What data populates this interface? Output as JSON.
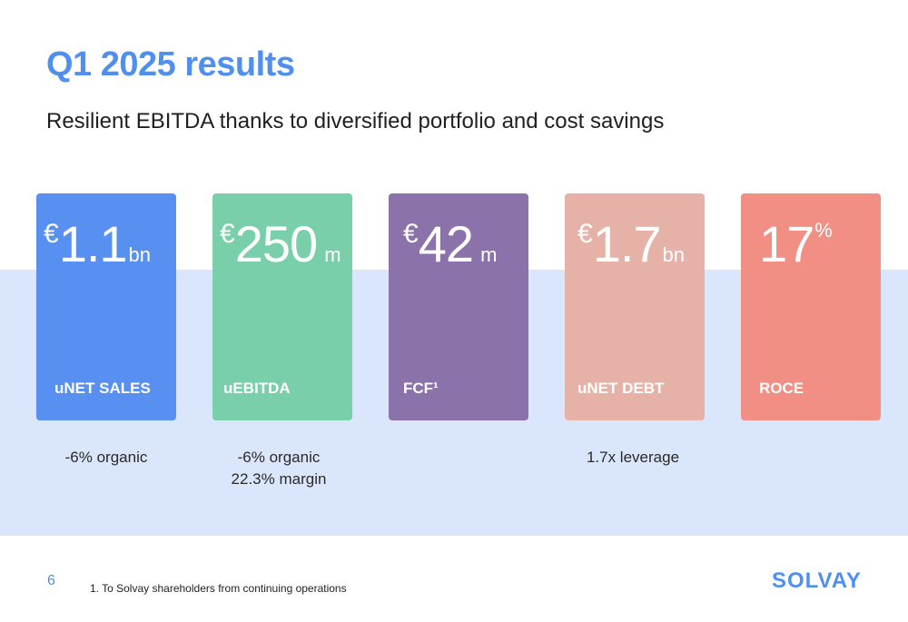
{
  "header": {
    "title": "Q1 2025 results",
    "subtitle": "Resilient EBITDA thanks to diversified portfolio and cost savings"
  },
  "kpis": [
    {
      "currency": "€",
      "value": "1.1",
      "unit": "bn",
      "percent": "",
      "label": "uNET SALES",
      "color": "#5890f2",
      "note_line1": "-6% organic",
      "note_line2": ""
    },
    {
      "currency": "€",
      "value": "250",
      "unit": " m",
      "percent": "",
      "label": "uEBITDA",
      "color": "#79cfaa",
      "note_line1": "-6% organic",
      "note_line2": "22.3% margin"
    },
    {
      "currency": "€",
      "value": "42",
      "unit": " m",
      "percent": "",
      "label": "FCF¹",
      "color": "#8b72ab",
      "note_line1": "",
      "note_line2": ""
    },
    {
      "currency": "€",
      "value": "1.7",
      "unit": "bn",
      "percent": "",
      "label": "uNET DEBT",
      "color": "#e6b2a8",
      "note_line1": "1.7x leverage",
      "note_line2": ""
    },
    {
      "currency": "",
      "value": "17",
      "unit": "",
      "percent": "%",
      "label": "ROCE",
      "color": "#f28f84",
      "note_line1": "",
      "note_line2": ""
    }
  ],
  "footer": {
    "page_number": "6",
    "footnote": "1. To Solvay shareholders from continuing operations",
    "logo_text": "SOLVAY"
  },
  "colors": {
    "accent": "#4f8ff0",
    "band": "#dae6fc"
  }
}
